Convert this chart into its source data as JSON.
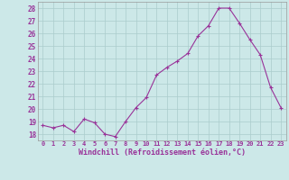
{
  "x": [
    0,
    1,
    2,
    3,
    4,
    5,
    6,
    7,
    8,
    9,
    10,
    11,
    12,
    13,
    14,
    15,
    16,
    17,
    18,
    19,
    20,
    21,
    22,
    23
  ],
  "y": [
    18.7,
    18.5,
    18.7,
    18.2,
    19.2,
    18.9,
    18.0,
    17.8,
    19.0,
    20.1,
    20.9,
    22.7,
    23.3,
    23.8,
    24.4,
    25.8,
    26.6,
    28.0,
    28.0,
    26.8,
    25.5,
    24.3,
    21.7,
    20.1
  ],
  "line_color": "#993399",
  "marker": "+",
  "marker_size": 3,
  "bg_color": "#cce8e8",
  "grid_color": "#aacccc",
  "xlabel": "Windchill (Refroidissement éolien,°C)",
  "xlabel_color": "#993399",
  "tick_color": "#993399",
  "ylim": [
    17.5,
    28.5
  ],
  "yticks": [
    18,
    19,
    20,
    21,
    22,
    23,
    24,
    25,
    26,
    27,
    28
  ],
  "xlim": [
    -0.5,
    23.5
  ],
  "xtick_fontsize": 5.0,
  "ytick_fontsize": 5.5,
  "xlabel_fontsize": 6.0
}
